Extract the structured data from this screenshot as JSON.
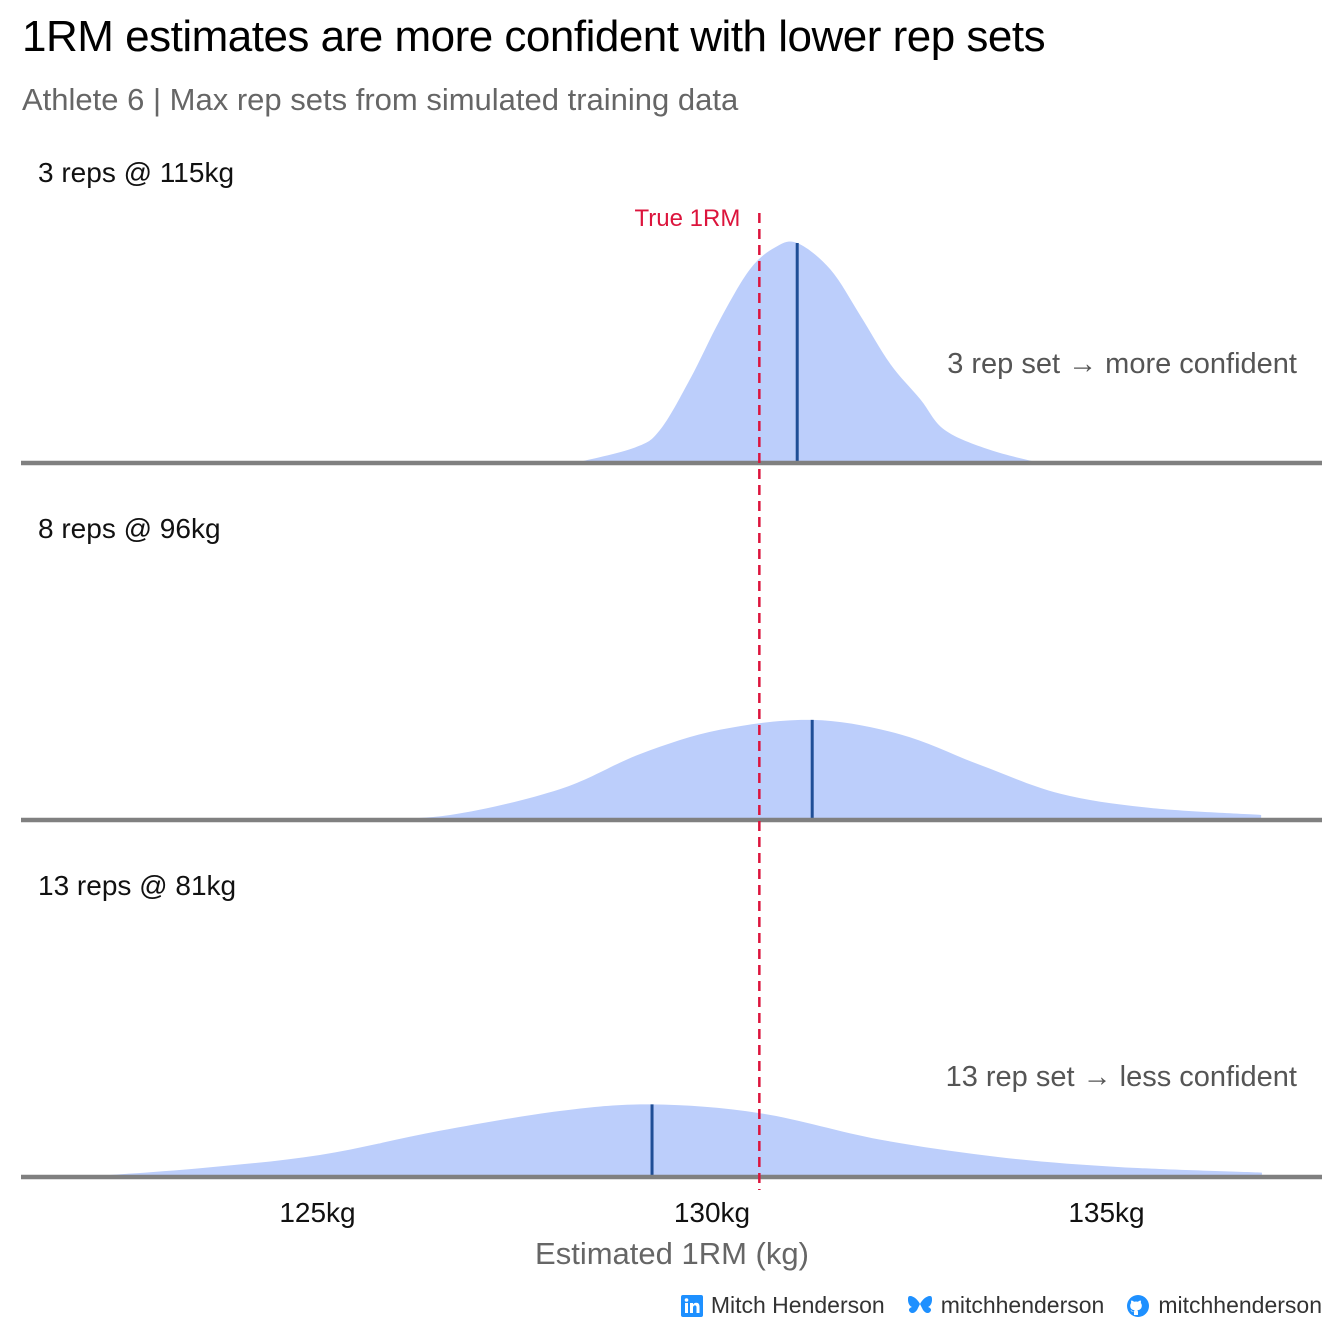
{
  "title": "1RM estimates are more confident with lower rep sets",
  "subtitle": "Athlete 6 | Max rep sets from simulated training data",
  "chart_data": {
    "type": "area",
    "subtype": "ridgeline-density",
    "title": "1RM estimates are more confident with lower rep sets",
    "subtitle": "Athlete 6 | Max rep sets from simulated training data",
    "xlabel": "Estimated 1RM (kg)",
    "ylabel": "",
    "xlim": [
      121.0,
      137.8
    ],
    "x_ticks": [
      125,
      130,
      135
    ],
    "x_tick_labels": [
      "125kg",
      "130kg",
      "135kg"
    ],
    "grid": false,
    "reference_line": {
      "label": "True 1RM",
      "value": 130.6,
      "color": "#DC143C",
      "style": "dashed"
    },
    "fill_color": "#BCCEFB",
    "mean_line_color": "#1F4E96",
    "baseline_color": "#808080",
    "series": [
      {
        "name": "3 reps @ 115kg",
        "mean": 131.08,
        "annotation": "3 rep set → more confident",
        "x": [
          128.26,
          129.02,
          129.34,
          129.72,
          130.1,
          130.48,
          130.8,
          131.08,
          131.5,
          131.88,
          132.26,
          132.64,
          132.95,
          133.52,
          134.16
        ],
        "density": [
          0.0,
          0.07,
          0.15,
          0.38,
          0.65,
          0.88,
          0.98,
          1.0,
          0.88,
          0.67,
          0.45,
          0.29,
          0.15,
          0.06,
          0.0
        ]
      },
      {
        "name": "8 reps @ 96kg",
        "mean": 131.27,
        "annotation": "",
        "x": [
          125.41,
          126.68,
          128.07,
          129.09,
          130.1,
          131.27,
          132.38,
          133.4,
          134.41,
          135.55,
          136.96
        ],
        "density": [
          0.0,
          0.023,
          0.14,
          0.3,
          0.41,
          0.455,
          0.39,
          0.25,
          0.12,
          0.055,
          0.023
        ]
      },
      {
        "name": "13 reps @ 81kg",
        "mean": 129.24,
        "annotation": "13 rep set → less confident",
        "x": [
          121.99,
          123.51,
          125.03,
          126.55,
          128.07,
          129.24,
          130.61,
          132.13,
          133.65,
          135.17,
          136.97
        ],
        "density": [
          0.0,
          0.04,
          0.1,
          0.21,
          0.3,
          0.33,
          0.29,
          0.17,
          0.09,
          0.045,
          0.02
        ]
      }
    ]
  },
  "footer": {
    "linkedin_icon": "linkedin-icon",
    "linkedin_name": "Mitch Henderson",
    "bluesky_icon": "bluesky-butterfly-icon",
    "bluesky_handle": "mitchhenderson",
    "github_icon": "github-icon",
    "github_handle": "mitchhenderson",
    "icon_color": "#1E90FF"
  }
}
